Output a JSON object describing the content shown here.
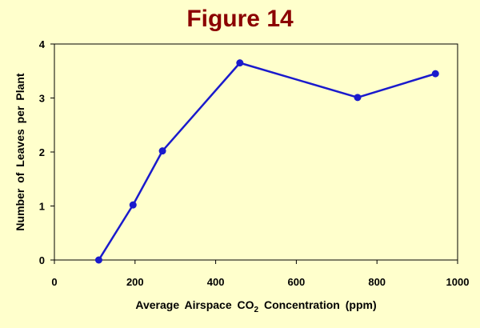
{
  "chart_data": {
    "type": "line",
    "title": "Figure 14",
    "xlabel_parts": {
      "before": "Average Airspace CO",
      "subscript": "2",
      "after": " Concentration (ppm)"
    },
    "ylabel": "Number of Leaves per Plant",
    "xlim": [
      0,
      1000
    ],
    "ylim": [
      0,
      4
    ],
    "x_ticks": [
      "0",
      "200",
      "400",
      "600",
      "800",
      "1000"
    ],
    "y_ticks": [
      "0",
      "1",
      "2",
      "3",
      "4"
    ],
    "grid": false,
    "legend": "none",
    "series": [
      {
        "color": "#1a1acc",
        "x": [
          110,
          195,
          268,
          460,
          752,
          945
        ],
        "y": [
          0,
          1.02,
          2.02,
          3.65,
          3.01,
          3.45
        ]
      }
    ]
  }
}
